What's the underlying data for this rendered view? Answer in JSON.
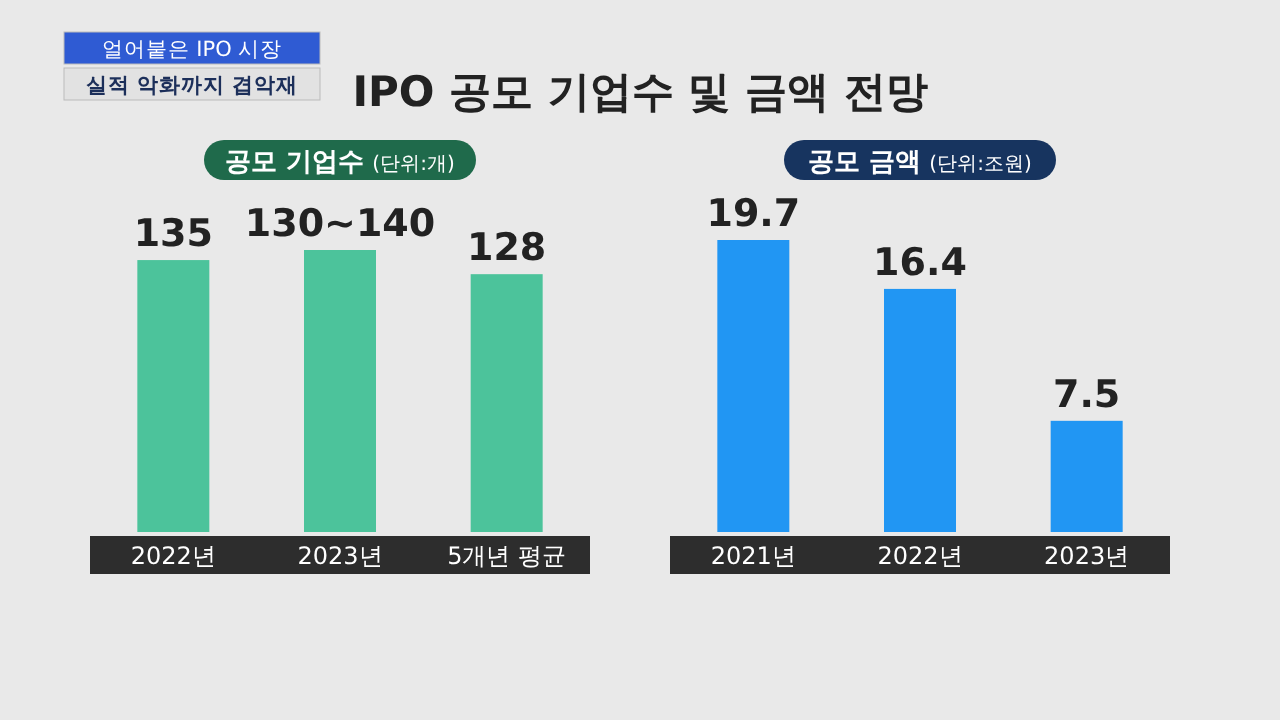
{
  "chart_data": [
    {
      "type": "other",
      "title": "IPO 공모 기업수 및 금액 전망",
      "annotations": [
        "얼어붙은 IPO 시장",
        "실적 악화까지 겹악재"
      ]
    },
    {
      "type": "bar",
      "title": "공모 기업수",
      "subtitle": "(단위:개)",
      "categories": [
        "2022년",
        "2023년",
        "5개년 평균"
      ],
      "values": [
        135,
        140,
        128
      ],
      "value_labels": [
        "135",
        "130~140",
        "128"
      ],
      "color": "#4cc39b"
    },
    {
      "type": "bar",
      "title": "공모 금액",
      "subtitle": "(단위:조원)",
      "categories": [
        "2021년",
        "2022년",
        "2023년"
      ],
      "values": [
        19.7,
        16.4,
        7.5
      ],
      "value_labels": [
        "19.7",
        "16.4",
        "7.5"
      ],
      "color": "#2196f3"
    }
  ]
}
